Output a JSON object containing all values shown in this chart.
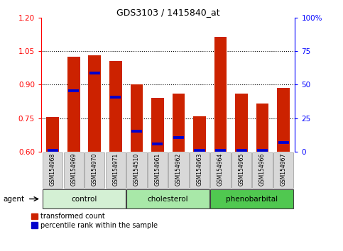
{
  "title": "GDS3103 / 1415840_at",
  "samples": [
    "GSM154968",
    "GSM154969",
    "GSM154970",
    "GSM154971",
    "GSM154510",
    "GSM154961",
    "GSM154962",
    "GSM154963",
    "GSM154964",
    "GSM154965",
    "GSM154966",
    "GSM154967"
  ],
  "red_values": [
    0.755,
    1.025,
    1.03,
    1.005,
    0.9,
    0.84,
    0.86,
    0.758,
    1.115,
    0.86,
    0.815,
    0.885
  ],
  "blue_values": [
    0.607,
    0.872,
    0.953,
    0.845,
    0.693,
    0.635,
    0.665,
    0.607,
    0.607,
    0.607,
    0.607,
    0.642
  ],
  "ylim_left": [
    0.6,
    1.2
  ],
  "ylim_right": [
    0,
    100
  ],
  "yticks_left": [
    0.6,
    0.75,
    0.9,
    1.05,
    1.2
  ],
  "yticks_right": [
    0,
    25,
    50,
    75,
    100
  ],
  "ytick_labels_right": [
    "0",
    "25",
    "50",
    "75",
    "100%"
  ],
  "groups": [
    {
      "label": "control",
      "start": 0,
      "end": 3,
      "color": "#d4f0d4"
    },
    {
      "label": "cholesterol",
      "start": 4,
      "end": 7,
      "color": "#a8e8a8"
    },
    {
      "label": "phenobarbital",
      "start": 8,
      "end": 11,
      "color": "#50c850"
    }
  ],
  "agent_label": "agent",
  "legend_red": "transformed count",
  "legend_blue": "percentile rank within the sample",
  "red_color": "#cc2200",
  "blue_color": "#0000cc",
  "bar_width": 0.6,
  "base_value": 0.6,
  "dotted_lines": [
    0.75,
    0.9,
    1.05
  ],
  "label_bg": "#d8d8d8"
}
